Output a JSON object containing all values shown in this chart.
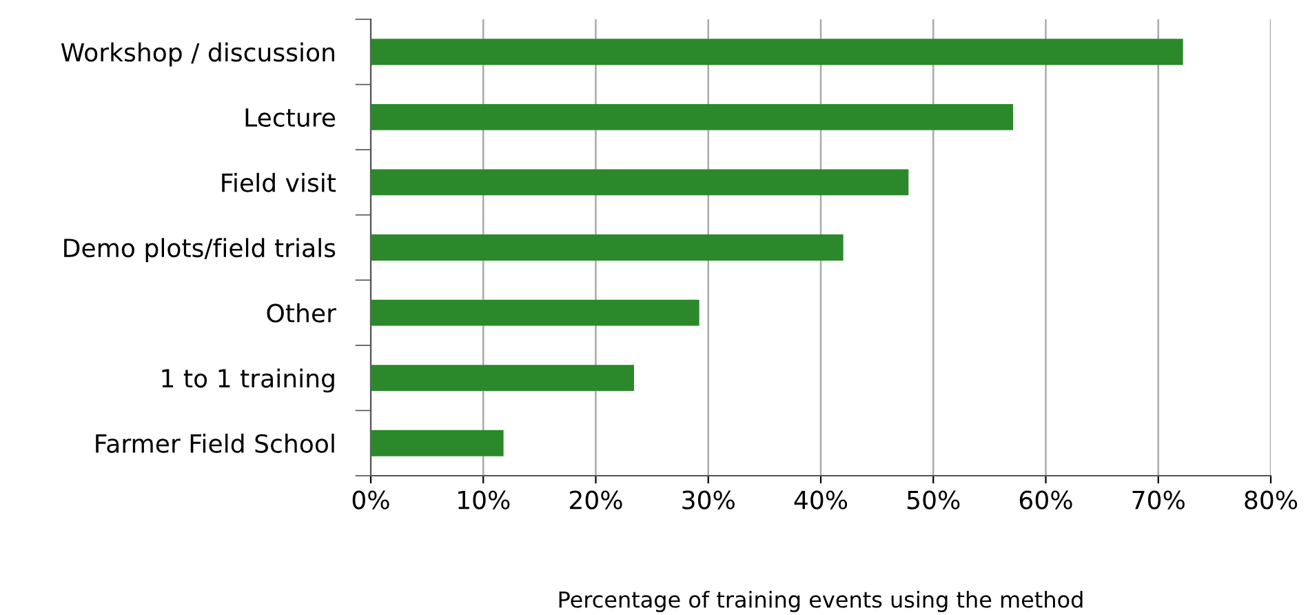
{
  "chart_data": {
    "type": "bar",
    "orientation": "horizontal",
    "xlabel": "Percentage of training events using the method",
    "categories": [
      "Workshop / discussion",
      "Lecture",
      "Field visit",
      "Demo plots/field trials",
      "Other",
      "1 to 1 training",
      "Farmer Field School"
    ],
    "values": [
      72.2,
      57.1,
      47.8,
      42.0,
      29.2,
      23.4,
      11.8
    ],
    "color": "#2b892b",
    "xlim": [
      0,
      80
    ],
    "xticks": [
      {
        "value": 0,
        "label": "0%"
      },
      {
        "value": 10,
        "label": "10%"
      },
      {
        "value": 20,
        "label": "20%"
      },
      {
        "value": 30,
        "label": "30%"
      },
      {
        "value": 40,
        "label": "40%"
      },
      {
        "value": 50,
        "label": "50%"
      },
      {
        "value": 60,
        "label": "60%"
      },
      {
        "value": 70,
        "label": "70%"
      },
      {
        "value": 80,
        "label": "80%"
      }
    ],
    "grid": "x"
  }
}
